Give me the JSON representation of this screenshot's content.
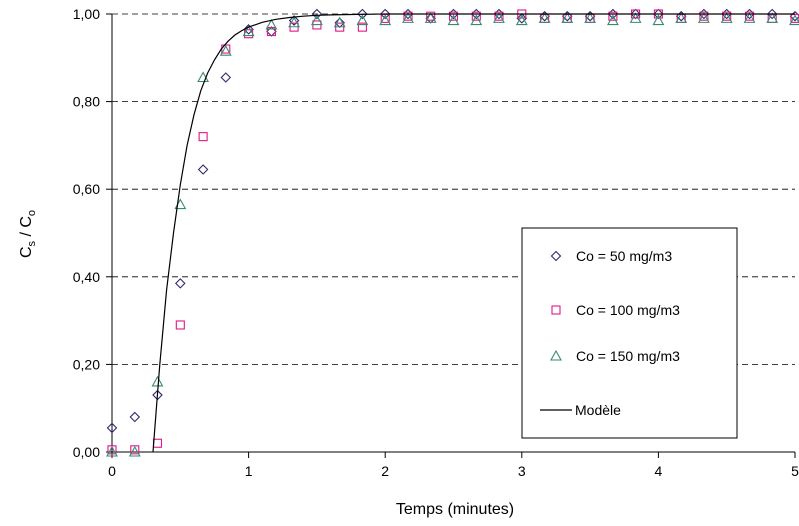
{
  "chart_data": {
    "type": "scatter",
    "xlabel": "Temps (minutes)",
    "ylabel": {
      "main": "C",
      "sub1": "s",
      "sep": " / C",
      "sub2": "o"
    },
    "xlim": [
      0,
      5
    ],
    "ylim": [
      0,
      1
    ],
    "x_ticks": [
      0,
      1,
      2,
      3,
      4,
      5
    ],
    "x_tick_labels": [
      "0",
      "1",
      "2",
      "3",
      "4",
      "5"
    ],
    "y_ticks": [
      0,
      0.2,
      0.4,
      0.6,
      0.8,
      1.0
    ],
    "y_tick_labels": [
      "0,00",
      "0,20",
      "0,40",
      "0,60",
      "0,80",
      "1,00"
    ],
    "grid": "horizontal-dashed",
    "legend_position": "right",
    "series": [
      {
        "name": "Co = 50 mg/m3",
        "marker": "diamond",
        "color": "#2e2a6e",
        "x": [
          0,
          0.167,
          0.333,
          0.5,
          0.667,
          0.833,
          1.0,
          1.167,
          1.333,
          1.5,
          1.667,
          1.833,
          2.0,
          2.167,
          2.333,
          2.5,
          2.667,
          2.833,
          3.0,
          3.167,
          3.333,
          3.5,
          3.667,
          3.833,
          4.0,
          4.167,
          4.333,
          4.5,
          4.667,
          4.833,
          5.0
        ],
        "y": [
          0.055,
          0.08,
          0.13,
          0.385,
          0.645,
          0.855,
          0.965,
          0.96,
          0.985,
          1.0,
          0.98,
          1.0,
          1.0,
          1.0,
          0.99,
          1.0,
          1.0,
          1.0,
          0.99,
          0.995,
          0.995,
          0.995,
          1.0,
          1.0,
          1.0,
          0.995,
          1.0,
          1.0,
          1.0,
          1.0,
          0.995
        ]
      },
      {
        "name": "Co = 100 mg/m3",
        "marker": "square",
        "color": "#e0168c",
        "x": [
          0,
          0.167,
          0.333,
          0.5,
          0.667,
          0.833,
          1.0,
          1.167,
          1.333,
          1.5,
          1.667,
          1.833,
          2.0,
          2.167,
          2.333,
          2.5,
          2.667,
          2.833,
          3.0,
          3.167,
          3.333,
          3.5,
          3.667,
          3.833,
          4.0,
          4.167,
          4.333,
          4.5,
          4.667,
          4.833,
          5.0
        ],
        "y": [
          0.005,
          0.005,
          0.02,
          0.29,
          0.72,
          0.92,
          0.955,
          0.96,
          0.97,
          0.975,
          0.97,
          0.97,
          0.99,
          0.995,
          0.995,
          0.995,
          0.995,
          0.995,
          1.0,
          0.99,
          0.99,
          0.99,
          0.995,
          1.0,
          1.0,
          0.99,
          0.995,
          0.995,
          0.995,
          0.99,
          0.99
        ]
      },
      {
        "name": "Co = 150 mg/m3",
        "marker": "triangle",
        "color": "#3a8a6e",
        "x": [
          0,
          0.167,
          0.333,
          0.5,
          0.667,
          0.833,
          1.0,
          1.167,
          1.333,
          1.5,
          1.667,
          1.833,
          2.0,
          2.167,
          2.333,
          2.5,
          2.667,
          2.833,
          3.0,
          3.167,
          3.333,
          3.5,
          3.667,
          3.833,
          4.0,
          4.167,
          4.333,
          4.5,
          4.667,
          4.833,
          5.0
        ],
        "y": [
          0.0,
          0.0,
          0.16,
          0.565,
          0.855,
          0.915,
          0.96,
          0.975,
          0.98,
          0.985,
          0.98,
          0.985,
          0.985,
          0.99,
          0.99,
          0.985,
          0.985,
          0.99,
          0.985,
          0.99,
          0.99,
          0.99,
          0.985,
          0.99,
          0.985,
          0.99,
          0.99,
          0.99,
          0.99,
          0.99,
          0.985
        ]
      },
      {
        "name": "Modèle",
        "marker": "line",
        "color": "#000000",
        "x": [
          0.3,
          0.32,
          0.35,
          0.4,
          0.45,
          0.5,
          0.55,
          0.6,
          0.65,
          0.7,
          0.75,
          0.8,
          0.85,
          0.9,
          0.95,
          1.0,
          1.1,
          1.2,
          1.3,
          1.4,
          1.5,
          1.6,
          1.8,
          2.0,
          2.5,
          3.0,
          4.0,
          5.0
        ],
        "y": [
          0.0,
          0.08,
          0.2,
          0.37,
          0.5,
          0.61,
          0.7,
          0.77,
          0.825,
          0.865,
          0.895,
          0.92,
          0.938,
          0.952,
          0.962,
          0.97,
          0.981,
          0.988,
          0.992,
          0.995,
          0.997,
          0.998,
          0.999,
          1.0,
          1.0,
          1.0,
          1.0,
          1.0
        ]
      }
    ]
  }
}
